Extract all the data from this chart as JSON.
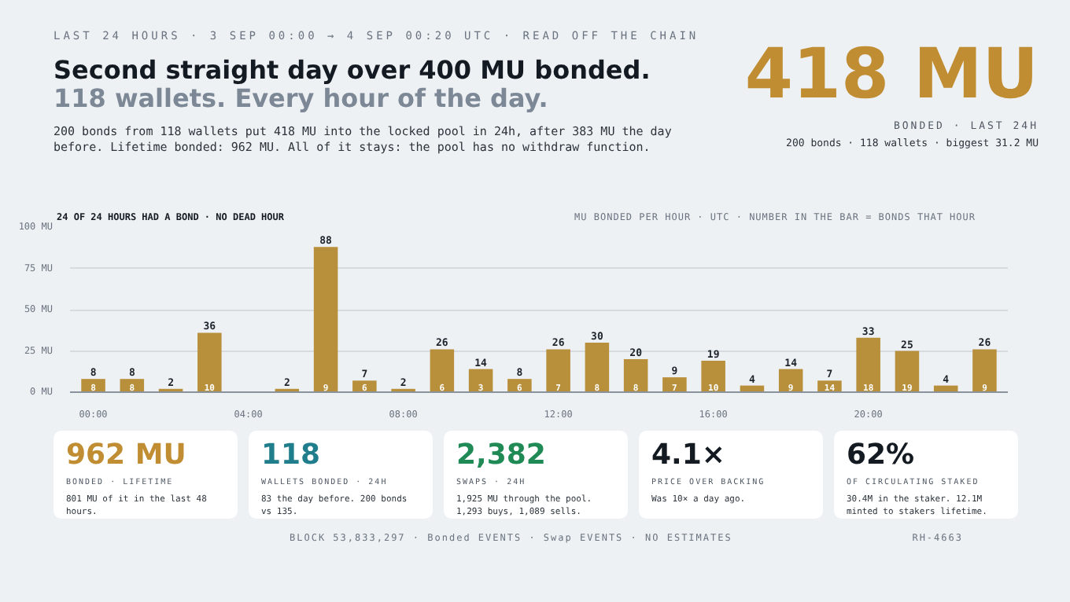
{
  "chart_data": {
    "type": "bar",
    "title": "Second straight day over 400 MU bonded.",
    "subtitle": "118 wallets. Every hour of the day.",
    "x": [
      0,
      1,
      2,
      3,
      4,
      5,
      6,
      7,
      8,
      9,
      10,
      11,
      12,
      13,
      14,
      15,
      16,
      17,
      18,
      19,
      20,
      21,
      22,
      23
    ],
    "values": [
      8,
      8,
      2,
      36,
      0,
      2,
      88,
      7,
      2,
      26,
      14,
      8,
      26,
      30,
      20,
      9,
      19,
      4,
      14,
      7,
      33,
      25,
      4,
      26
    ],
    "value_labels": [
      "8",
      "8",
      "2",
      "36",
      null,
      "2",
      "88",
      "7",
      "2",
      "26",
      "14",
      "8",
      "26",
      "30",
      "20",
      "9",
      "19",
      "4",
      "14",
      "7",
      "33",
      "25",
      "4",
      "26"
    ],
    "color": "#b88f3a",
    "xlim": [
      -0.6,
      23.6
    ],
    "xticks": [
      {
        "value": 0,
        "label": "00:00"
      },
      {
        "value": 4,
        "label": "04:00"
      },
      {
        "value": 8,
        "label": "08:00"
      },
      {
        "value": 12,
        "label": "12:00"
      },
      {
        "value": 16,
        "label": "16:00"
      },
      {
        "value": 20,
        "label": "20:00"
      }
    ],
    "ylim": [
      0,
      100
    ],
    "yticks": [
      {
        "value": 0,
        "label": "0 MU"
      },
      {
        "value": 25,
        "label": "25 MU"
      },
      {
        "value": 50,
        "label": "50 MU"
      },
      {
        "value": 75,
        "label": "75 MU"
      },
      {
        "value": 100,
        "label": "100 MU"
      }
    ],
    "grid": "y",
    "annotations": [
      "LAST 24 HOURS · 3 SEP 00:00 → 4 SEP 00:20 UTC · READ OFF THE CHAIN",
      "200 bonds from 118 wallets put 418 MU into the locked pool in 24h, after 383 MU the day before. Lifetime bonded: 962 MU. All of it stays: the pool has no withdraw function.",
      "418 MU",
      "BONDED · LAST 24H",
      "200 bonds · 118 wallets · biggest 31.2 MU",
      "24 OF 24 HOURS HAD A BOND · NO DEAD HOUR",
      "MU BONDED PER HOUR · UTC · NUMBER IN THE BAR = BONDS THAT HOUR",
      "962 MU",
      "BONDED · LIFETIME",
      "801 MU of it in the last 48 hours.",
      "118",
      "WALLETS BONDED · 24H",
      "83 the day before. 200 bonds vs 135.",
      "2,382",
      "SWAPS · 24H",
      "1,925 MU through the pool. 1,293 buys, 1,089 sells.",
      "4.1×",
      "PRICE OVER BACKING",
      "Was 10× a day ago.",
      "62%",
      "OF CIRCULATING STAKED",
      "30.4M in the staker. 12.1M minted to stakers lifetime.",
      "BLOCK 53,833,297 · Bonded EVENTS · Swap EVENTS · NO ESTIMATES",
      "RH-4663",
      {
        "text": "8",
        "x": 0,
        "y": 0
      },
      {
        "text": "8",
        "x": 1,
        "y": 0
      },
      {
        "text": "10",
        "x": 3,
        "y": 0
      },
      {
        "text": "9",
        "x": 6,
        "y": 0
      },
      {
        "text": "6",
        "x": 7,
        "y": 0
      },
      {
        "text": "6",
        "x": 9,
        "y": 0
      },
      {
        "text": "3",
        "x": 10,
        "y": 0
      },
      {
        "text": "6",
        "x": 11,
        "y": 0
      },
      {
        "text": "7",
        "x": 12,
        "y": 0
      },
      {
        "text": "8",
        "x": 13,
        "y": 0
      },
      {
        "text": "8",
        "x": 14,
        "y": 0
      },
      {
        "text": "7",
        "x": 15,
        "y": 0
      },
      {
        "text": "10",
        "x": 16,
        "y": 0
      },
      {
        "text": "9",
        "x": 18,
        "y": 0
      },
      {
        "text": "14",
        "x": 19,
        "y": 0
      },
      {
        "text": "18",
        "x": 20,
        "y": 0
      },
      {
        "text": "19",
        "x": 21,
        "y": 0
      },
      {
        "text": "9",
        "x": 23,
        "y": 0
      }
    ]
  }
}
